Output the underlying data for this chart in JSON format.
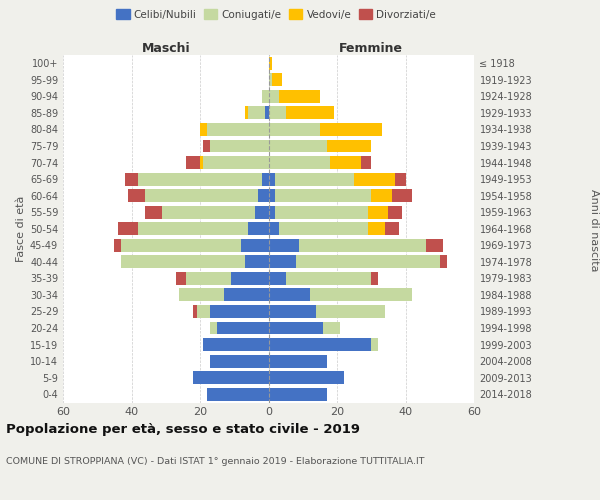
{
  "age_groups": [
    "0-4",
    "5-9",
    "10-14",
    "15-19",
    "20-24",
    "25-29",
    "30-34",
    "35-39",
    "40-44",
    "45-49",
    "50-54",
    "55-59",
    "60-64",
    "65-69",
    "70-74",
    "75-79",
    "80-84",
    "85-89",
    "90-94",
    "95-99",
    "100+"
  ],
  "birth_years": [
    "2014-2018",
    "2009-2013",
    "2004-2008",
    "1999-2003",
    "1994-1998",
    "1989-1993",
    "1984-1988",
    "1979-1983",
    "1974-1978",
    "1969-1973",
    "1964-1968",
    "1959-1963",
    "1954-1958",
    "1949-1953",
    "1944-1948",
    "1939-1943",
    "1934-1938",
    "1929-1933",
    "1924-1928",
    "1919-1923",
    "≤ 1918"
  ],
  "male": {
    "celibi": [
      18,
      22,
      17,
      19,
      15,
      17,
      13,
      11,
      7,
      8,
      6,
      4,
      3,
      2,
      0,
      0,
      0,
      1,
      0,
      0,
      0
    ],
    "coniugati": [
      0,
      0,
      0,
      0,
      2,
      4,
      13,
      13,
      36,
      35,
      32,
      27,
      33,
      36,
      19,
      17,
      18,
      5,
      2,
      0,
      0
    ],
    "vedovi": [
      0,
      0,
      0,
      0,
      0,
      0,
      0,
      0,
      0,
      0,
      0,
      0,
      0,
      0,
      1,
      0,
      2,
      1,
      0,
      0,
      0
    ],
    "divorziati": [
      0,
      0,
      0,
      0,
      0,
      1,
      0,
      3,
      0,
      2,
      6,
      5,
      5,
      4,
      4,
      2,
      0,
      0,
      0,
      0,
      0
    ]
  },
  "female": {
    "nubili": [
      17,
      22,
      17,
      30,
      16,
      14,
      12,
      5,
      8,
      9,
      3,
      2,
      2,
      2,
      0,
      0,
      0,
      0,
      0,
      0,
      0
    ],
    "coniugate": [
      0,
      0,
      0,
      2,
      5,
      20,
      30,
      25,
      42,
      37,
      26,
      27,
      28,
      23,
      18,
      17,
      15,
      5,
      3,
      1,
      0
    ],
    "vedove": [
      0,
      0,
      0,
      0,
      0,
      0,
      0,
      0,
      0,
      0,
      5,
      6,
      6,
      12,
      9,
      13,
      18,
      14,
      12,
      3,
      1
    ],
    "divorziate": [
      0,
      0,
      0,
      0,
      0,
      0,
      0,
      2,
      2,
      5,
      4,
      4,
      6,
      3,
      3,
      0,
      0,
      0,
      0,
      0,
      0
    ]
  },
  "colors": {
    "celibi": "#4472c4",
    "coniugati": "#c5d9a0",
    "vedovi": "#ffc000",
    "divorziati": "#c0504d"
  },
  "title": "Popolazione per età, sesso e stato civile - 2019",
  "subtitle": "COMUNE DI STROPPIANA (VC) - Dati ISTAT 1° gennaio 2019 - Elaborazione TUTTITALIA.IT",
  "ylabel_left": "Fasce di età",
  "ylabel_right": "Anni di nascita",
  "xlim": 60,
  "background_color": "#f0f0eb",
  "plot_bg": "#ffffff"
}
